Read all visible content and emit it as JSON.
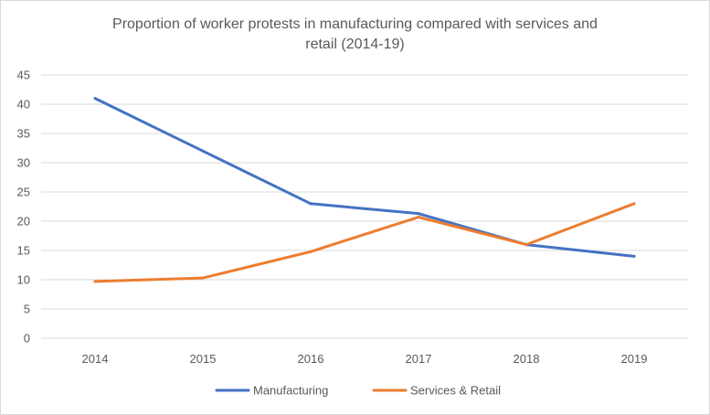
{
  "chart_data": {
    "type": "line",
    "title_lines": [
      "Proportion of worker protests in manufacturing compared with services and",
      "retail (2014-19)"
    ],
    "xlabel": "",
    "ylabel": "",
    "categories": [
      "2014",
      "2015",
      "2016",
      "2017",
      "2018",
      "2019"
    ],
    "y_ticks": [
      "0",
      "5",
      "10",
      "15",
      "20",
      "25",
      "30",
      "35",
      "40",
      "45"
    ],
    "ylim": [
      0,
      45
    ],
    "grid": true,
    "legend_position": "bottom",
    "series": [
      {
        "name": "Manufacturing",
        "color": "#4472c4",
        "values": [
          41,
          32,
          23,
          21.3,
          16,
          14
        ]
      },
      {
        "name": "Services & Retail",
        "color": "#ed7d31",
        "values": [
          9.7,
          10.3,
          14.8,
          20.7,
          16,
          23
        ]
      }
    ]
  }
}
